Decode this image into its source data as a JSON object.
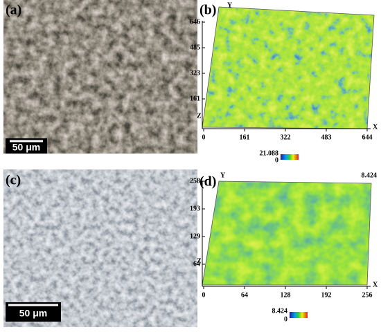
{
  "panels": [
    {
      "label": "(a)",
      "scale_bar": "50 μm"
    },
    {
      "label": "(b)",
      "axis_x": "X",
      "axis_y": "Y",
      "axis_z": "Z",
      "y_ticks": [
        "646",
        "485",
        "323",
        "161"
      ],
      "x_ticks": [
        "0",
        "161",
        "322",
        "483",
        "644"
      ],
      "colorbar_max": "21.088",
      "colorbar_min": "0"
    },
    {
      "label": "(c)",
      "scale_bar": "50 μm"
    },
    {
      "label": "(d)",
      "axis_x": "X",
      "axis_y": "Y",
      "axis_z": "Z",
      "y_ticks": [
        "258",
        "193",
        "129",
        "64"
      ],
      "x_ticks": [
        "0",
        "64",
        "128",
        "192",
        "256"
      ],
      "z_max": "8.424",
      "colorbar_max": "8.424",
      "colorbar_min": "0"
    }
  ]
}
